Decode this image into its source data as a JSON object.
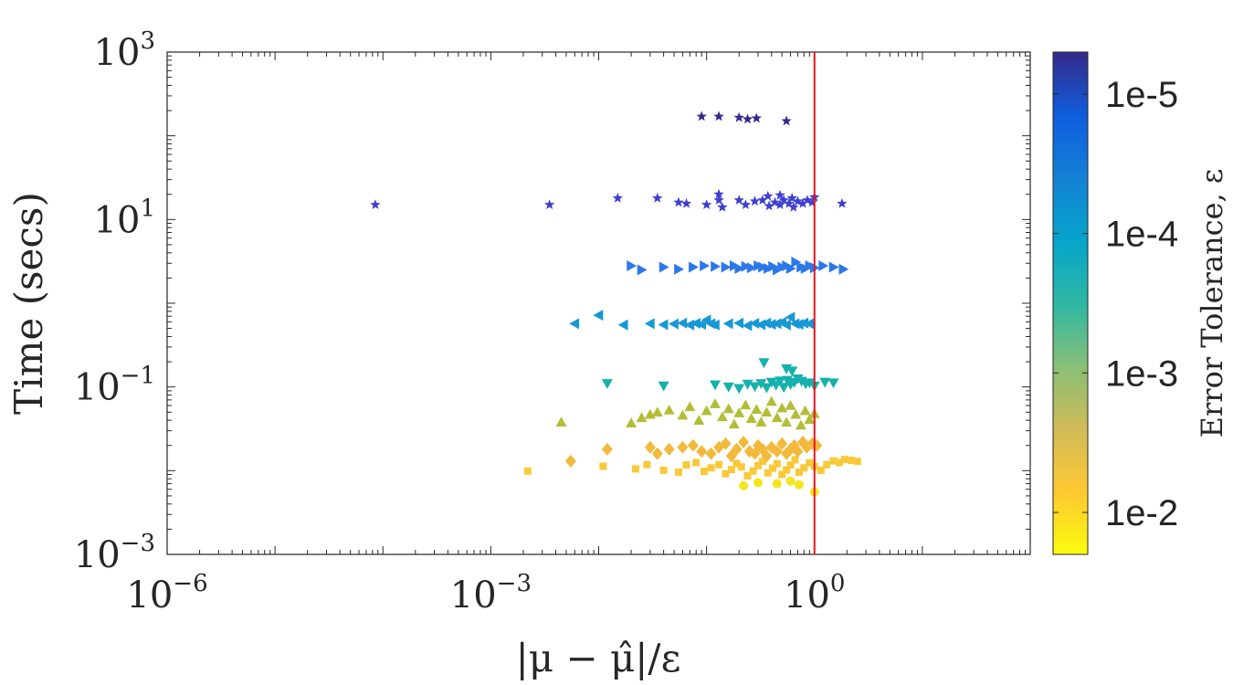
{
  "chart_data": {
    "type": "scatter",
    "xscale": "log",
    "yscale": "log",
    "xlim": [
      1e-06,
      100.0
    ],
    "ylim": [
      0.001,
      1000
    ],
    "xlabel": "|μ − μ̂|/ε",
    "ylabel": "Time (secs)",
    "x_ticks": [
      {
        "value": 1e-06,
        "base": "10",
        "exp": "−6"
      },
      {
        "value": 0.001,
        "base": "10",
        "exp": "−3"
      },
      {
        "value": 1,
        "base": "10",
        "exp": "0"
      }
    ],
    "y_ticks": [
      {
        "value": 0.001,
        "base": "10",
        "exp": "−3"
      },
      {
        "value": 0.1,
        "base": "10",
        "exp": "−1"
      },
      {
        "value": 10,
        "base": "10",
        "exp": "1"
      },
      {
        "value": 1000,
        "base": "10",
        "exp": "3"
      }
    ],
    "reference_line": {
      "x": 1,
      "color": "#e8141c"
    },
    "colorbar": {
      "title": "Error Tolerance, ε",
      "scale": "log",
      "range": [
        0.02,
        5e-06
      ],
      "ticks": [
        {
          "value": 1e-05,
          "label": "1e-5"
        },
        {
          "value": 0.0001,
          "label": "1e-4"
        },
        {
          "value": 0.001,
          "label": "1e-3"
        },
        {
          "value": 0.01,
          "label": "1e-2"
        }
      ],
      "colors": [
        "#352a87",
        "#0f5cdd",
        "#1481d6",
        "#06a4ca",
        "#2eb7a4",
        "#87bf77",
        "#d1bb59",
        "#fec832",
        "#f9fb0e"
      ]
    },
    "series": [
      {
        "tolerance": 0.01,
        "marker": "circle",
        "color": "#f5e61f",
        "points": [
          [
            0.22,
            0.0066
          ],
          [
            0.3,
            0.0072
          ],
          [
            0.45,
            0.007
          ],
          [
            0.6,
            0.0075
          ],
          [
            0.72,
            0.0068
          ],
          [
            1.0,
            0.0056
          ]
        ]
      },
      {
        "tolerance": 0.008,
        "marker": "square",
        "color": "#f9c93a",
        "points": [
          [
            0.0022,
            0.0099
          ],
          [
            0.011,
            0.0113
          ],
          [
            0.022,
            0.0105
          ],
          [
            0.028,
            0.0118
          ],
          [
            0.04,
            0.0101
          ],
          [
            0.055,
            0.0096
          ],
          [
            0.065,
            0.0117
          ],
          [
            0.08,
            0.0125
          ],
          [
            0.095,
            0.0098
          ],
          [
            0.11,
            0.0108
          ],
          [
            0.13,
            0.0118
          ],
          [
            0.15,
            0.0092
          ],
          [
            0.17,
            0.0103
          ],
          [
            0.19,
            0.0122
          ],
          [
            0.21,
            0.0111
          ],
          [
            0.24,
            0.0087
          ],
          [
            0.27,
            0.0099
          ],
          [
            0.3,
            0.0115
          ],
          [
            0.33,
            0.0129
          ],
          [
            0.37,
            0.0094
          ],
          [
            0.41,
            0.0107
          ],
          [
            0.45,
            0.0121
          ],
          [
            0.5,
            0.009
          ],
          [
            0.55,
            0.0102
          ],
          [
            0.6,
            0.0117
          ],
          [
            0.66,
            0.0135
          ],
          [
            0.72,
            0.0096
          ],
          [
            0.8,
            0.0108
          ],
          [
            0.9,
            0.0124
          ],
          [
            1.0,
            0.0113
          ],
          [
            1.15,
            0.0101
          ],
          [
            1.3,
            0.0118
          ],
          [
            1.5,
            0.0131
          ],
          [
            1.7,
            0.0125
          ],
          [
            1.9,
            0.0136
          ],
          [
            2.2,
            0.0133
          ],
          [
            2.5,
            0.0129
          ]
        ]
      },
      {
        "tolerance": 0.005,
        "marker": "diamond",
        "color": "#f3b93c",
        "points": [
          [
            0.0055,
            0.013
          ],
          [
            0.012,
            0.018
          ],
          [
            0.03,
            0.019
          ],
          [
            0.035,
            0.016
          ],
          [
            0.045,
            0.018
          ],
          [
            0.06,
            0.019
          ],
          [
            0.075,
            0.02
          ],
          [
            0.09,
            0.017
          ],
          [
            0.11,
            0.016
          ],
          [
            0.13,
            0.019
          ],
          [
            0.15,
            0.021
          ],
          [
            0.17,
            0.015
          ],
          [
            0.19,
            0.018
          ],
          [
            0.22,
            0.022
          ],
          [
            0.25,
            0.017
          ],
          [
            0.28,
            0.016
          ],
          [
            0.3,
            0.02
          ],
          [
            0.33,
            0.018
          ],
          [
            0.36,
            0.015
          ],
          [
            0.4,
            0.019
          ],
          [
            0.45,
            0.017
          ],
          [
            0.5,
            0.021
          ],
          [
            0.55,
            0.016
          ],
          [
            0.6,
            0.018
          ],
          [
            0.65,
            0.02
          ],
          [
            0.7,
            0.017
          ],
          [
            0.78,
            0.022
          ],
          [
            0.85,
            0.019
          ],
          [
            0.95,
            0.021
          ],
          [
            1.05,
            0.02
          ]
        ]
      },
      {
        "tolerance": 0.002,
        "marker": "triangle-up",
        "color": "#b4bd38",
        "points": [
          [
            0.0045,
            0.038
          ],
          [
            0.02,
            0.037
          ],
          [
            0.025,
            0.043
          ],
          [
            0.03,
            0.047
          ],
          [
            0.035,
            0.05
          ],
          [
            0.045,
            0.053
          ],
          [
            0.06,
            0.046
          ],
          [
            0.07,
            0.058
          ],
          [
            0.085,
            0.04
          ],
          [
            0.1,
            0.052
          ],
          [
            0.12,
            0.063
          ],
          [
            0.14,
            0.044
          ],
          [
            0.16,
            0.055
          ],
          [
            0.18,
            0.036
          ],
          [
            0.2,
            0.049
          ],
          [
            0.23,
            0.061
          ],
          [
            0.26,
            0.042
          ],
          [
            0.29,
            0.054
          ],
          [
            0.32,
            0.038
          ],
          [
            0.36,
            0.05
          ],
          [
            0.4,
            0.067
          ],
          [
            0.45,
            0.043
          ],
          [
            0.5,
            0.056
          ],
          [
            0.55,
            0.038
          ],
          [
            0.6,
            0.06
          ],
          [
            0.67,
            0.047
          ],
          [
            0.75,
            0.035
          ],
          [
            0.82,
            0.052
          ],
          [
            0.9,
            0.041
          ],
          [
            1.0,
            0.048
          ]
        ]
      },
      {
        "tolerance": 0.0008,
        "marker": "triangle-down",
        "color": "#15b1ad",
        "points": [
          [
            0.012,
            0.11
          ],
          [
            0.04,
            0.103
          ],
          [
            0.12,
            0.106
          ],
          [
            0.16,
            0.1
          ],
          [
            0.2,
            0.096
          ],
          [
            0.24,
            0.108
          ],
          [
            0.28,
            0.101
          ],
          [
            0.32,
            0.11
          ],
          [
            0.36,
            0.098
          ],
          [
            0.4,
            0.114
          ],
          [
            0.44,
            0.105
          ],
          [
            0.48,
            0.118
          ],
          [
            0.52,
            0.099
          ],
          [
            0.56,
            0.12
          ],
          [
            0.6,
            0.107
          ],
          [
            0.65,
            0.113
          ],
          [
            0.7,
            0.125
          ],
          [
            0.76,
            0.117
          ],
          [
            0.83,
            0.109
          ],
          [
            0.9,
            0.112
          ],
          [
            1.0,
            0.103
          ],
          [
            1.25,
            0.114
          ],
          [
            1.5,
            0.112
          ],
          [
            0.34,
            0.195
          ],
          [
            0.55,
            0.165
          ],
          [
            0.62,
            0.155
          ]
        ]
      },
      {
        "tolerance": 0.0002,
        "marker": "triangle-left",
        "color": "#1798d6",
        "points": [
          [
            0.006,
            0.57
          ],
          [
            0.01,
            0.72
          ],
          [
            0.017,
            0.55
          ],
          [
            0.03,
            0.57
          ],
          [
            0.04,
            0.555
          ],
          [
            0.05,
            0.567
          ],
          [
            0.06,
            0.58
          ],
          [
            0.07,
            0.55
          ],
          [
            0.08,
            0.575
          ],
          [
            0.09,
            0.56
          ],
          [
            0.1,
            0.63
          ],
          [
            0.11,
            0.57
          ],
          [
            0.12,
            0.55
          ],
          [
            0.16,
            0.57
          ],
          [
            0.2,
            0.58
          ],
          [
            0.24,
            0.54
          ],
          [
            0.28,
            0.575
          ],
          [
            0.32,
            0.555
          ],
          [
            0.36,
            0.58
          ],
          [
            0.4,
            0.56
          ],
          [
            0.45,
            0.57
          ],
          [
            0.5,
            0.59
          ],
          [
            0.55,
            0.55
          ],
          [
            0.6,
            0.68
          ],
          [
            0.66,
            0.57
          ],
          [
            0.72,
            0.56
          ],
          [
            0.8,
            0.58
          ],
          [
            0.9,
            0.57
          ]
        ]
      },
      {
        "tolerance": 6e-05,
        "marker": "triangle-right",
        "color": "#2b78ea",
        "points": [
          [
            0.02,
            2.8
          ],
          [
            0.025,
            2.5
          ],
          [
            0.04,
            2.7
          ],
          [
            0.055,
            2.55
          ],
          [
            0.075,
            2.7
          ],
          [
            0.095,
            2.8
          ],
          [
            0.12,
            2.75
          ],
          [
            0.15,
            2.7
          ],
          [
            0.18,
            2.8
          ],
          [
            0.2,
            2.6
          ],
          [
            0.23,
            2.75
          ],
          [
            0.26,
            2.65
          ],
          [
            0.3,
            2.8
          ],
          [
            0.33,
            2.7
          ],
          [
            0.37,
            2.6
          ],
          [
            0.41,
            2.75
          ],
          [
            0.45,
            2.5
          ],
          [
            0.5,
            2.7
          ],
          [
            0.55,
            2.8
          ],
          [
            0.6,
            2.6
          ],
          [
            0.67,
            3.1
          ],
          [
            0.75,
            2.7
          ],
          [
            0.82,
            2.6
          ],
          [
            0.9,
            2.8
          ],
          [
            1.0,
            2.65
          ],
          [
            1.2,
            2.8
          ],
          [
            1.5,
            2.7
          ],
          [
            1.85,
            2.55
          ]
        ]
      },
      {
        "tolerance": 2e-05,
        "marker": "star",
        "color": "#3f3fcf",
        "points": [
          [
            8.5e-05,
            15
          ],
          [
            0.0035,
            15
          ],
          [
            0.015,
            18
          ],
          [
            0.035,
            18
          ],
          [
            0.055,
            16
          ],
          [
            0.065,
            15.5
          ],
          [
            0.1,
            15
          ],
          [
            0.13,
            17
          ],
          [
            0.14,
            14
          ],
          [
            0.2,
            17
          ],
          [
            0.23,
            15
          ],
          [
            0.28,
            16.5
          ],
          [
            0.33,
            17
          ],
          [
            0.38,
            14.5
          ],
          [
            0.43,
            16
          ],
          [
            0.48,
            15
          ],
          [
            0.52,
            17
          ],
          [
            0.58,
            15.5
          ],
          [
            0.64,
            14
          ],
          [
            0.7,
            16.5
          ],
          [
            0.78,
            15.5
          ],
          [
            0.86,
            17
          ],
          [
            0.95,
            16
          ],
          [
            1.0,
            18.5
          ],
          [
            0.13,
            20
          ],
          [
            0.37,
            19
          ],
          [
            0.48,
            19.5
          ],
          [
            0.62,
            18
          ],
          [
            1.8,
            15.5
          ]
        ]
      },
      {
        "tolerance": 8e-06,
        "marker": "star",
        "color": "#34288f",
        "points": [
          [
            0.09,
            170
          ],
          [
            0.13,
            170
          ],
          [
            0.2,
            165
          ],
          [
            0.24,
            158
          ],
          [
            0.29,
            162
          ],
          [
            0.55,
            150
          ]
        ]
      }
    ]
  }
}
